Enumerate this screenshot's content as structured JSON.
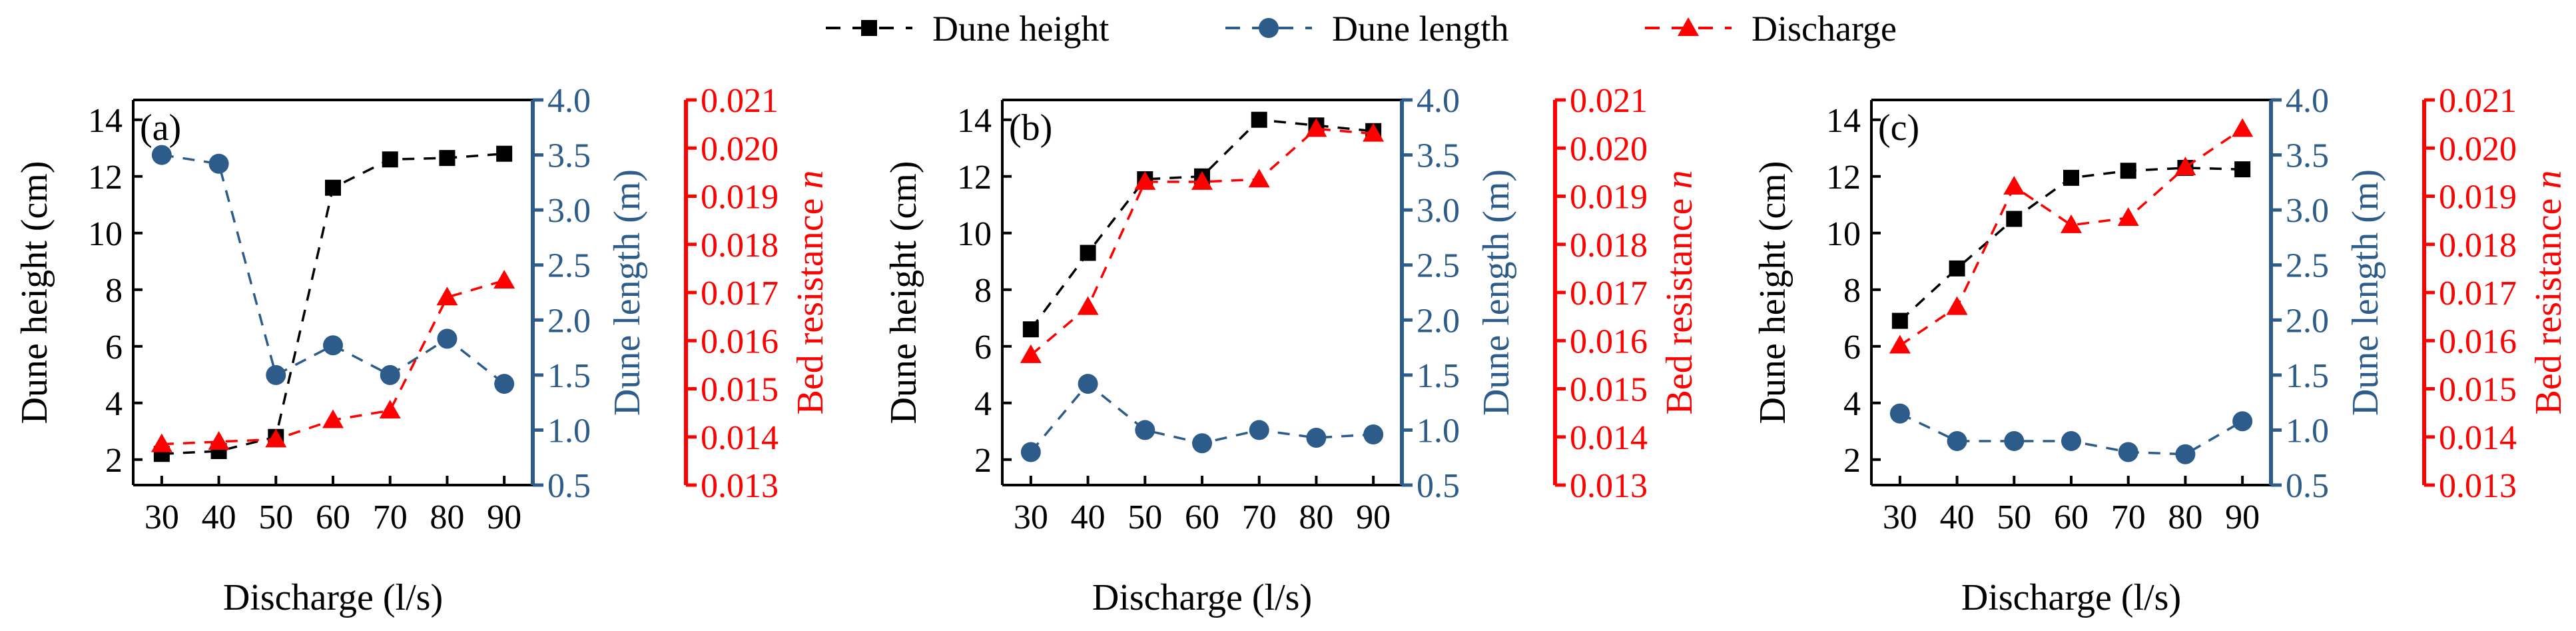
{
  "legend": {
    "entries": [
      {
        "label": "Dune height",
        "color": "#000000",
        "marker": "square"
      },
      {
        "label": "Dune length",
        "color": "#2e5c8a",
        "marker": "circle"
      },
      {
        "label": "Discharge",
        "color": "#ff0000",
        "marker": "triangle"
      }
    ],
    "placement": "top-center"
  },
  "chart_data": [
    {
      "type": "line",
      "panel_label": "(a)",
      "xlabel": "Discharge (l/s)",
      "ylabel_left": "Dune height (cm)",
      "ylabel_mid": "Dune length (m)",
      "ylabel_right_text": "Bed resistance ",
      "ylabel_right_var": "n",
      "x": [
        30,
        40,
        50,
        60,
        70,
        80,
        90
      ],
      "xticks": [
        "30",
        "40",
        "50",
        "60",
        "70",
        "80",
        "90"
      ],
      "y1_ticks": [
        "2",
        "4",
        "6",
        "8",
        "10",
        "12",
        "14"
      ],
      "y2_ticks": [
        "0.5",
        "1.0",
        "1.5",
        "2.0",
        "2.5",
        "3.0",
        "3.5",
        "4.0"
      ],
      "y3_ticks": [
        "0.013",
        "0.014",
        "0.015",
        "0.016",
        "0.017",
        "0.018",
        "0.019",
        "0.020",
        "0.021"
      ],
      "y1lim": [
        1.1,
        14.7
      ],
      "y2lim": [
        0.5,
        4.0
      ],
      "y3lim": [
        0.013,
        0.021
      ],
      "series": [
        {
          "name": "Dune height",
          "axis": "y1",
          "values": [
            2.2,
            2.3,
            2.8,
            11.6,
            12.6,
            12.65,
            12.8
          ]
        },
        {
          "name": "Dune length",
          "axis": "y2",
          "values": [
            3.5,
            3.42,
            1.5,
            1.77,
            1.5,
            1.83,
            1.42
          ]
        },
        {
          "name": "Discharge",
          "axis": "y3",
          "values": [
            0.01385,
            0.0139,
            0.01395,
            0.01435,
            0.01455,
            0.0169,
            0.01725
          ]
        }
      ]
    },
    {
      "type": "line",
      "panel_label": "(b)",
      "xlabel": "Discharge (l/s)",
      "ylabel_left": "Dune height (cm)",
      "ylabel_mid": "Dune length (m)",
      "ylabel_right_text": "Bed resistance ",
      "ylabel_right_var": "n",
      "x": [
        30,
        40,
        50,
        60,
        70,
        80,
        90
      ],
      "xticks": [
        "30",
        "40",
        "50",
        "60",
        "70",
        "80",
        "90"
      ],
      "y1_ticks": [
        "2",
        "4",
        "6",
        "8",
        "10",
        "12",
        "14"
      ],
      "y2_ticks": [
        "0.5",
        "1.0",
        "1.5",
        "2.0",
        "2.5",
        "3.0",
        "3.5",
        "4.0"
      ],
      "y3_ticks": [
        "0.013",
        "0.014",
        "0.015",
        "0.016",
        "0.017",
        "0.018",
        "0.019",
        "0.020",
        "0.021"
      ],
      "y1lim": [
        1.1,
        14.7
      ],
      "y2lim": [
        0.5,
        4.0
      ],
      "y3lim": [
        0.013,
        0.021
      ],
      "series": [
        {
          "name": "Dune height",
          "axis": "y1",
          "values": [
            6.6,
            9.3,
            11.9,
            12.0,
            14.0,
            13.8,
            13.6
          ]
        },
        {
          "name": "Dune length",
          "axis": "y2",
          "values": [
            0.8,
            1.42,
            1.0,
            0.88,
            1.0,
            0.93,
            0.96
          ]
        },
        {
          "name": "Discharge",
          "axis": "y3",
          "values": [
            0.0157,
            0.0167,
            0.0193,
            0.0193,
            0.01935,
            0.0204,
            0.0203
          ]
        }
      ]
    },
    {
      "type": "line",
      "panel_label": "(c)",
      "xlabel": "Discharge (l/s)",
      "ylabel_left": "Dune height (cm)",
      "ylabel_mid": "Dune length (m)",
      "ylabel_right_text": "Bed resistance ",
      "ylabel_right_var": "n",
      "x": [
        30,
        40,
        50,
        60,
        70,
        80,
        90
      ],
      "xticks": [
        "30",
        "40",
        "50",
        "60",
        "70",
        "80",
        "90"
      ],
      "y1_ticks": [
        "2",
        "4",
        "6",
        "8",
        "10",
        "12",
        "14"
      ],
      "y2_ticks": [
        "0.5",
        "1.0",
        "1.5",
        "2.0",
        "2.5",
        "3.0",
        "3.5",
        "4.0"
      ],
      "y3_ticks": [
        "0.013",
        "0.014",
        "0.015",
        "0.016",
        "0.017",
        "0.018",
        "0.019",
        "0.020",
        "0.021"
      ],
      "y1lim": [
        1.1,
        14.7
      ],
      "y2lim": [
        0.5,
        4.0
      ],
      "y3lim": [
        0.013,
        0.021
      ],
      "series": [
        {
          "name": "Dune height",
          "axis": "y1",
          "values": [
            6.9,
            8.75,
            10.5,
            11.95,
            12.2,
            12.3,
            12.25
          ]
        },
        {
          "name": "Dune length",
          "axis": "y2",
          "values": [
            1.15,
            0.9,
            0.9,
            0.9,
            0.8,
            0.78,
            1.08
          ]
        },
        {
          "name": "Discharge",
          "axis": "y3",
          "values": [
            0.0159,
            0.0167,
            0.0192,
            0.0184,
            0.01855,
            0.0196,
            0.0204
          ]
        }
      ]
    }
  ]
}
